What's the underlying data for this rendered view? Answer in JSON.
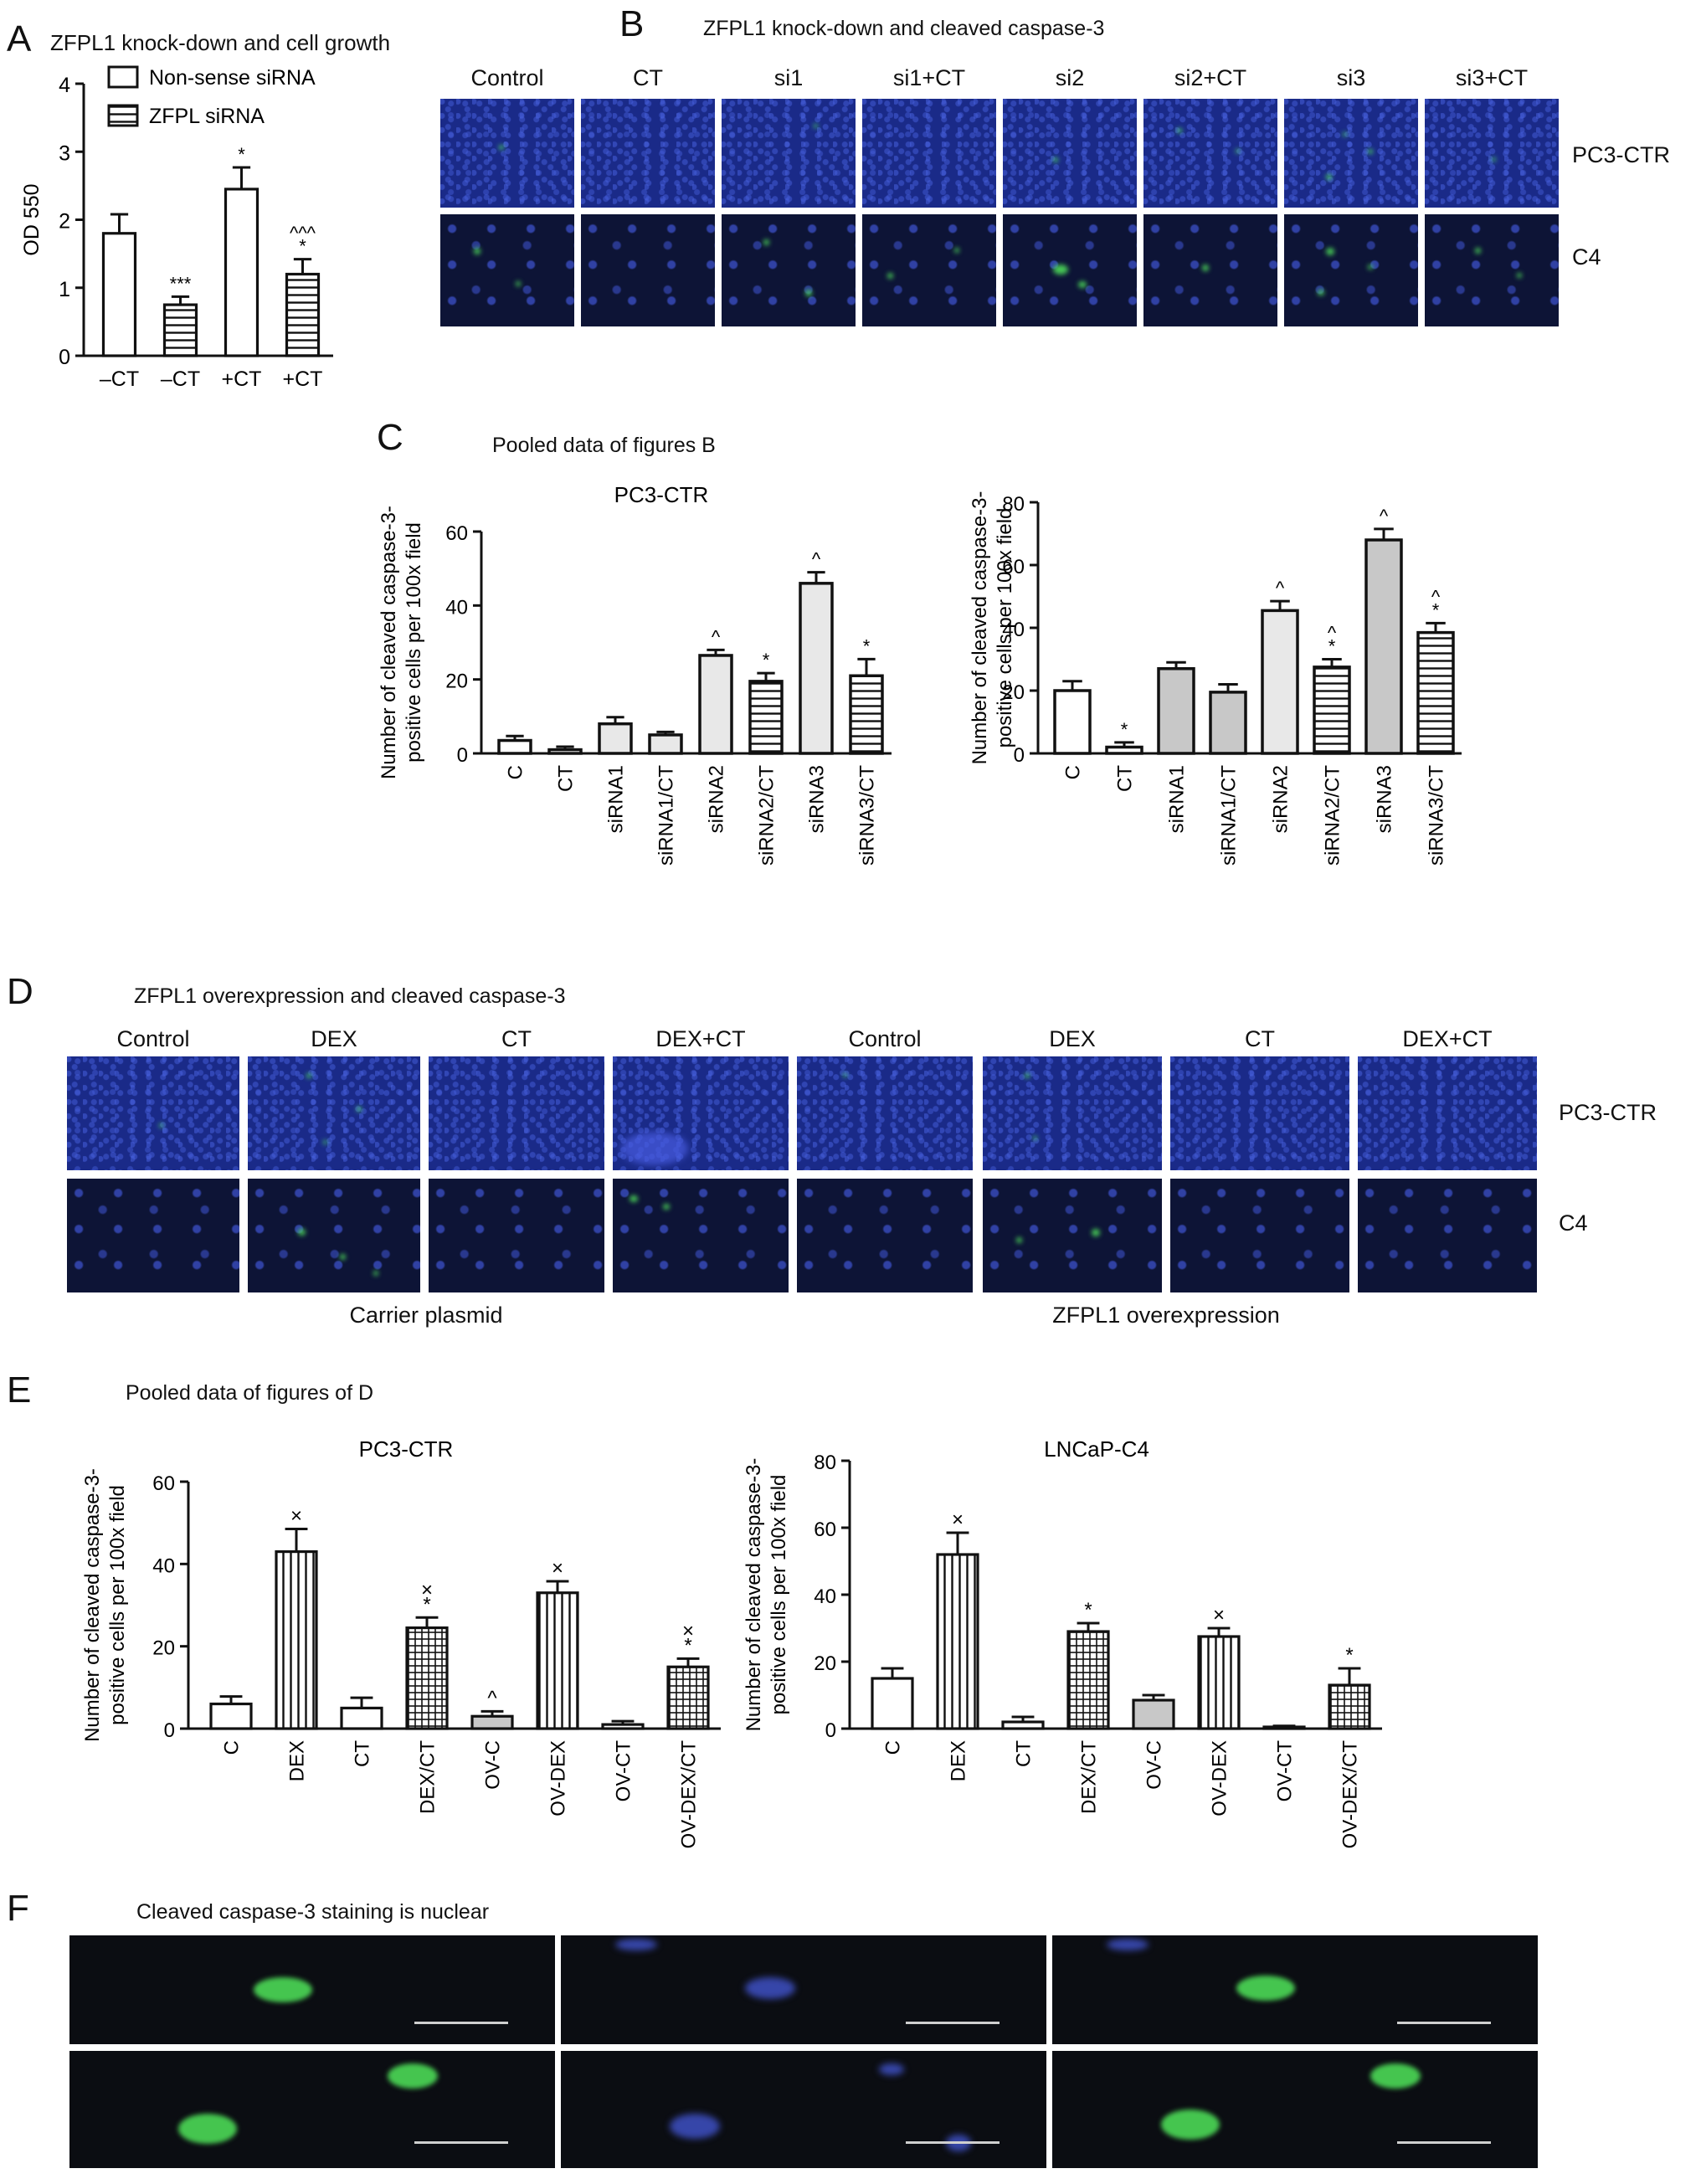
{
  "panel_letters": {
    "a": "A",
    "b": "B",
    "c": "C",
    "d": "D",
    "e": "E",
    "f": "F"
  },
  "panel_titles": {
    "a": "ZFPL1 knock-down and cell growth",
    "b": "ZFPL1 knock-down and cleaved caspase-3",
    "c": "Pooled data of figures B",
    "d": "ZFPL1 overexpression and cleaved caspase-3",
    "e": "Pooled data of figures of D",
    "f": "Cleaved caspase-3 staining is nuclear"
  },
  "panel_b": {
    "columns": [
      "Control",
      "CT",
      "si1",
      "si1+CT",
      "si2",
      "si2+CT",
      "si3",
      "si3+CT"
    ],
    "rows": [
      "PC3-CTR",
      "C4"
    ]
  },
  "panel_d": {
    "columns": [
      "Control",
      "DEX",
      "CT",
      "DEX+CT",
      "Control",
      "DEX",
      "CT",
      "DEX+CT"
    ],
    "rows": [
      "PC3-CTR",
      "C4"
    ],
    "groups": [
      "Carrier plasmid",
      "ZFPL1 overexpression"
    ]
  },
  "colors": {
    "green": "#4fe35a",
    "blue": "#3a4fd0",
    "bar_light": "#e8e8e8",
    "bar_mid": "#c8c8c8",
    "bar_dark": "#8f8f8f"
  },
  "chart_data": [
    {
      "id": "A",
      "type": "bar",
      "title": "ZFPL1 knock-down and cell growth",
      "categories": [
        "–CT",
        "–CT",
        "+CT",
        "+CT"
      ],
      "values": [
        1.8,
        0.75,
        2.45,
        1.2
      ],
      "errors": [
        0.28,
        0.12,
        0.32,
        0.22
      ],
      "fills": [
        "open",
        "hstripe",
        "open",
        "hstripe"
      ],
      "annotations": [
        "",
        "***",
        "*",
        "^^^\n*"
      ],
      "legend": [
        "Non-sense siRNA",
        "ZFPL siRNA"
      ],
      "legend_position": "top",
      "xlabel": "",
      "ylabel": "OD 550",
      "ylim": [
        0,
        4
      ],
      "yticks": [
        0,
        1,
        2,
        3,
        4
      ]
    },
    {
      "id": "C-left",
      "type": "bar",
      "title": "PC3-CTR",
      "categories": [
        "C",
        "CT",
        "siRNA1",
        "siRNA1/CT",
        "siRNA2",
        "siRNA2/CT",
        "siRNA3",
        "siRNA3/CT"
      ],
      "values": [
        3.5,
        1,
        8,
        5,
        26.5,
        19.5,
        46,
        21
      ],
      "errors": [
        1.2,
        0.8,
        1.8,
        0.8,
        1.5,
        2.2,
        3,
        4.5
      ],
      "fills": [
        "open",
        "open",
        "light",
        "light",
        "light",
        "hstripe",
        "light",
        "hstripe"
      ],
      "annotations": [
        "",
        "",
        "",
        "",
        "^",
        "*",
        "^",
        "*"
      ],
      "xlabel": "",
      "ylabel": "Number of cleaved caspase-3-\npositive cells per 100x field",
      "ylim": [
        0,
        60
      ],
      "yticks": [
        0,
        20,
        40,
        60
      ]
    },
    {
      "id": "C-right",
      "type": "bar",
      "title": "",
      "categories": [
        "C",
        "CT",
        "siRNA1",
        "siRNA1/CT",
        "siRNA2",
        "siRNA2/CT",
        "siRNA3",
        "siRNA3/CT"
      ],
      "values": [
        20,
        2,
        27,
        19.5,
        45.5,
        27.5,
        68,
        38.5
      ],
      "errors": [
        3,
        1.5,
        2,
        2.5,
        3,
        2.5,
        3.5,
        3
      ],
      "fills": [
        "open",
        "open",
        "gray",
        "gray",
        "light",
        "hstripe",
        "gray",
        "hstripe"
      ],
      "annotations": [
        "",
        "*",
        "",
        "",
        "^",
        "^\n*",
        "^",
        "^\n*"
      ],
      "xlabel": "",
      "ylabel": "Number of cleaved caspase-3-\npositive cells per 100x field",
      "ylim": [
        0,
        80
      ],
      "yticks": [
        0,
        20,
        40,
        60,
        80
      ]
    },
    {
      "id": "E-left",
      "type": "bar",
      "title": "PC3-CTR",
      "categories": [
        "C",
        "DEX",
        "CT",
        "DEX/CT",
        "OV-C",
        "OV-DEX",
        "OV-CT",
        "OV-DEX/CT"
      ],
      "values": [
        6,
        43,
        5,
        24.5,
        3,
        33,
        1,
        15
      ],
      "errors": [
        1.8,
        5.5,
        2.5,
        2.5,
        1.2,
        2.8,
        0.8,
        2
      ],
      "fills": [
        "open",
        "vstripe",
        "open",
        "grid",
        "gray",
        "vstripe",
        "open",
        "grid"
      ],
      "annotations": [
        "",
        "×",
        "",
        "×\n*",
        "^",
        "×",
        "",
        "×\n*"
      ],
      "xlabel": "",
      "ylabel": "Number of cleaved caspase-3-\npositive cells per 100x field",
      "ylim": [
        0,
        60
      ],
      "yticks": [
        0,
        20,
        40,
        60
      ]
    },
    {
      "id": "E-right",
      "type": "bar",
      "title": "LNCaP-C4",
      "categories": [
        "C",
        "DEX",
        "CT",
        "DEX/CT",
        "OV-C",
        "OV-DEX",
        "OV-CT",
        "OV-DEX/CT"
      ],
      "values": [
        15,
        52,
        2,
        29,
        8.5,
        27.5,
        0.5,
        13
      ],
      "errors": [
        3,
        6.5,
        1.5,
        2.5,
        1.5,
        2.5,
        0.3,
        5
      ],
      "fills": [
        "open",
        "vstripe",
        "open",
        "grid",
        "gray",
        "vstripe",
        "open",
        "grid"
      ],
      "annotations": [
        "",
        "×",
        "",
        "*",
        "",
        "×",
        "",
        "*"
      ],
      "xlabel": "",
      "ylabel": "Number of cleaved caspase-3-\npositive cells per 100x field",
      "ylim": [
        0,
        80
      ],
      "yticks": [
        0,
        20,
        40,
        60,
        80
      ]
    }
  ]
}
